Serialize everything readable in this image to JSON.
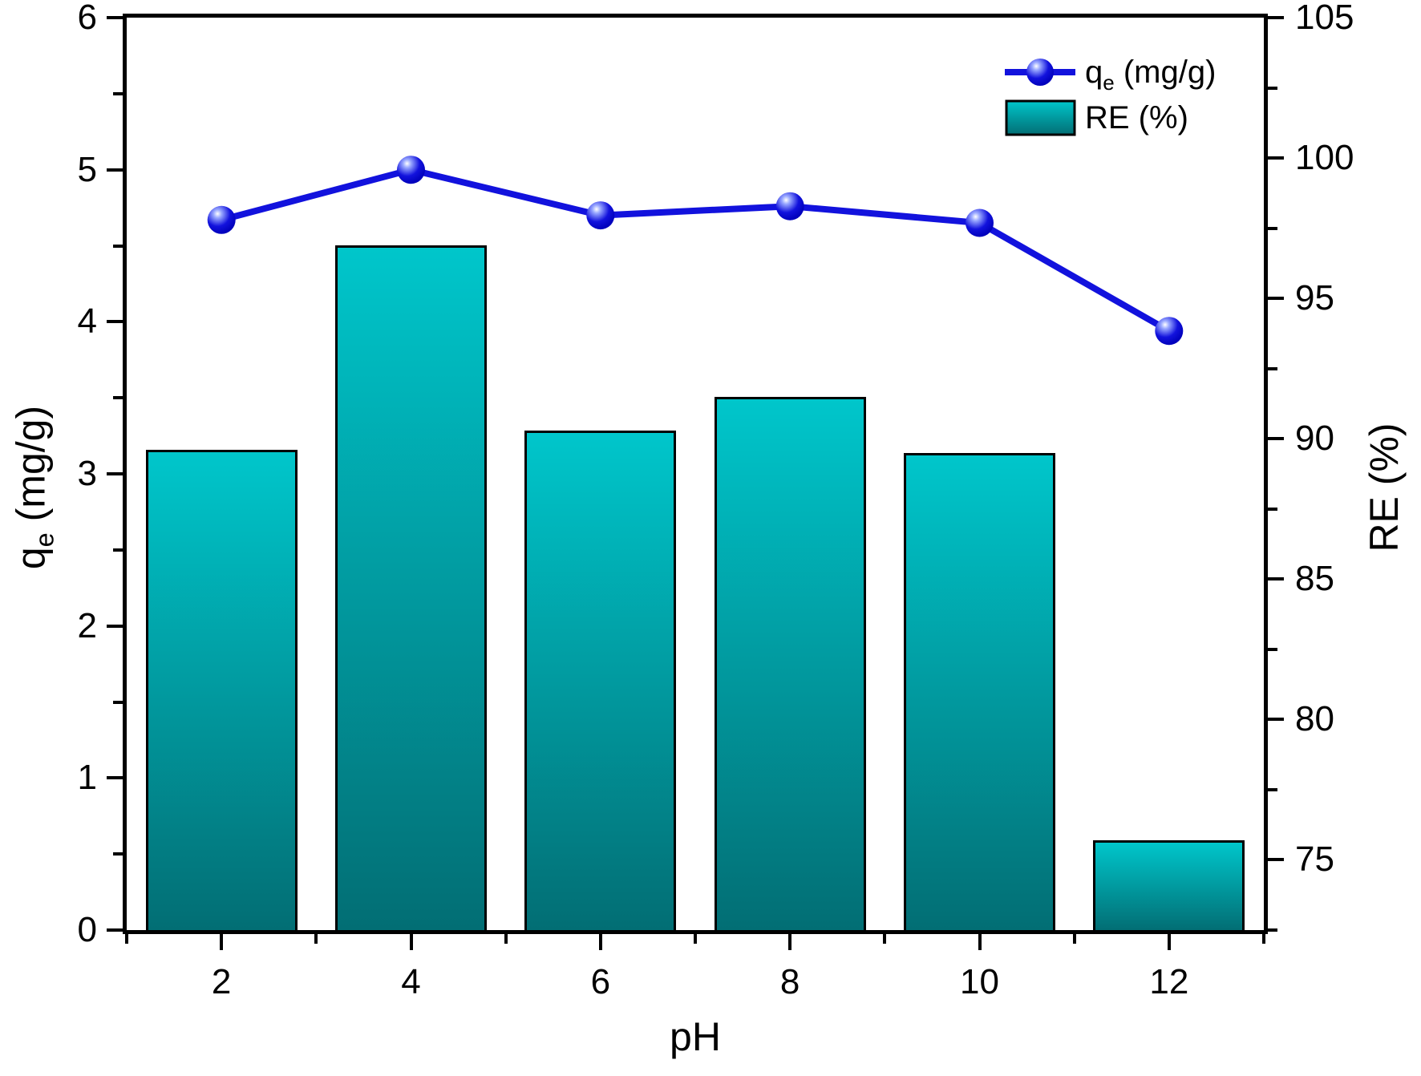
{
  "labels": {
    "qe": {
      "pre": "q",
      "sub": "e",
      "post": " (mg/g)"
    },
    "re": "RE (%)"
  },
  "colors": {
    "background": "#ffffff",
    "axis": "#000000",
    "text": "#000000",
    "line": "#1212dd",
    "marker_highlight": "#ffffff",
    "marker_mid": "#99a8ff",
    "marker_dark": "#0000bb",
    "bar_top": "#00c6cb",
    "bar_bottom": "#026e74",
    "bar_border": "#000000"
  },
  "chart_data": {
    "type": "bar",
    "subtype": "dual-axis bar + line combo",
    "categories": [
      2,
      4,
      6,
      8,
      10,
      12
    ],
    "series": [
      {
        "name": "qe (mg/g)",
        "type": "line",
        "axis": "left",
        "marker": "sphere",
        "values": [
          4.67,
          5.0,
          4.7,
          4.76,
          4.65,
          3.94
        ]
      },
      {
        "name": "RE (%)",
        "type": "bar",
        "axis": "right",
        "values": [
          89.6,
          96.9,
          90.3,
          91.5,
          89.5,
          75.7
        ]
      }
    ],
    "bar_width_x_units": 1.6,
    "grid": "off",
    "legend": {
      "position": "top-right",
      "entries": [
        "qe (mg/g)",
        "RE (%)"
      ]
    },
    "axes": {
      "x": {
        "label": "pH",
        "range": [
          1,
          13
        ],
        "major_ticks": [
          2,
          4,
          6,
          8,
          10,
          12
        ],
        "minor_ticks": [
          1,
          3,
          5,
          7,
          9,
          11,
          13
        ]
      },
      "left": {
        "label": "qe (mg/g)",
        "range": [
          0,
          6
        ],
        "major_ticks": [
          0,
          1,
          2,
          3,
          4,
          5,
          6
        ],
        "minor_step": 0.5
      },
      "right": {
        "label": "RE (%)",
        "range": [
          72.5,
          105
        ],
        "major_ticks": [
          75,
          80,
          85,
          90,
          95,
          100,
          105
        ],
        "minor_step": 2.5
      }
    }
  }
}
